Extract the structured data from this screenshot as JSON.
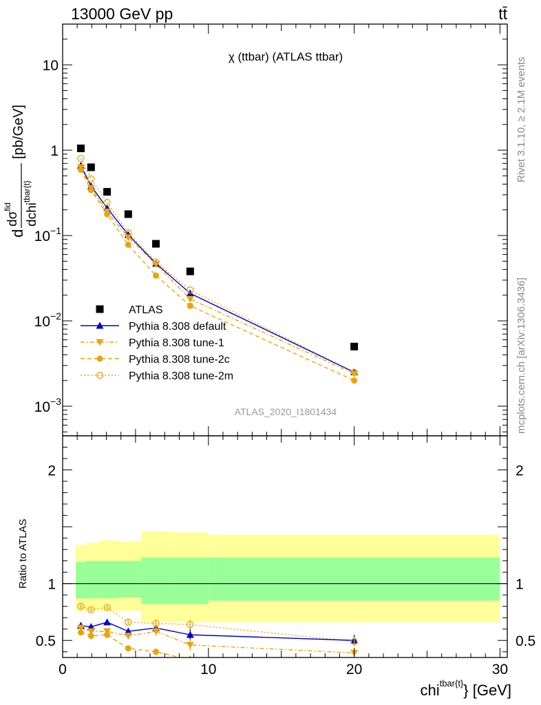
{
  "header": {
    "left": "13000 GeV pp",
    "right": "tt̄"
  },
  "side_labels": {
    "rivet": "Rivet 3.1.10, ≥ 2.1M events",
    "mcplots": "mcplots.cern.ch [arXiv:1306.3436]"
  },
  "chart_data": [
    {
      "type": "line",
      "title": "χ (ttbar) (ATLAS ttbar)",
      "watermark": "ATLAS_2020_I1801434",
      "ylabel": {
        "main": "d",
        "num_sigma": "dσ",
        "num_sup": "fid",
        "den": "dchi",
        "den_sup": "tbar{t}",
        "unit": "[pb/GeV]"
      },
      "yscale": "log",
      "xlim": [
        0,
        30.5
      ],
      "ylim": [
        0.00045,
        30
      ],
      "yticks": [
        {
          "value": 10,
          "label": "10"
        },
        {
          "value": 1,
          "label": "1"
        },
        {
          "value": 0.1,
          "label": "10",
          "exp": "−1"
        },
        {
          "value": 0.01,
          "label": "10",
          "exp": "−2"
        },
        {
          "value": 0.001,
          "label": "10",
          "exp": "−3"
        }
      ],
      "series": [
        {
          "name": "ATLAS",
          "color": "#000000",
          "marker": "square",
          "line": "none",
          "x": [
            1.25,
            1.95,
            3.05,
            4.5,
            6.4,
            8.75,
            20
          ],
          "y": [
            1.05,
            0.63,
            0.325,
            0.178,
            0.08,
            0.038,
            0.005
          ]
        },
        {
          "name": "Pythia 8.308 default",
          "color": "#0000cc",
          "marker": "triangle-up",
          "line": "solid",
          "x": [
            1.25,
            1.95,
            3.05,
            4.5,
            6.4,
            8.75,
            20
          ],
          "y": [
            0.66,
            0.38,
            0.21,
            0.102,
            0.047,
            0.021,
            0.0025
          ]
        },
        {
          "name": "Pythia 8.308 tune-1",
          "color": "#e8a40c",
          "marker": "triangle-down",
          "line": "dashdot",
          "x": [
            1.25,
            1.95,
            3.05,
            4.5,
            6.4,
            8.75,
            20
          ],
          "y": [
            0.63,
            0.36,
            0.19,
            0.095,
            0.046,
            0.018,
            0.0024
          ]
        },
        {
          "name": "Pythia 8.308 tune-2c",
          "color": "#e8a40c",
          "marker": "circle",
          "line": "dashed",
          "x": [
            1.25,
            1.95,
            3.05,
            4.5,
            6.4,
            8.75,
            20
          ],
          "y": [
            0.59,
            0.34,
            0.178,
            0.078,
            0.034,
            0.015,
            0.002
          ]
        },
        {
          "name": "Pythia 8.308 tune-2m",
          "color": "#e8a40c",
          "marker": "open-circle",
          "line": "dotted",
          "x": [
            1.25,
            1.95,
            3.05,
            4.5,
            6.4,
            8.75,
            20
          ],
          "y": [
            0.8,
            0.46,
            0.245,
            0.108,
            0.049,
            0.023,
            0.0025
          ]
        }
      ]
    },
    {
      "type": "line",
      "ylabel": "Ratio to ATLAS",
      "xlabel": {
        "main": "chi",
        "sup": "tbar{t}",
        "tail": "} [GeV]"
      },
      "xlim": [
        0,
        30.5
      ],
      "ylim": [
        0.35,
        2.3
      ],
      "xticks": [
        0,
        10,
        20,
        30
      ],
      "yticks": [
        0.5,
        1,
        2
      ],
      "reference_line": 1,
      "bands": [
        {
          "x0": 0.9,
          "x1": 1.6,
          "yellow": [
            0.76,
            1.34
          ],
          "green": [
            0.87,
            1.19
          ]
        },
        {
          "x0": 1.6,
          "x1": 2.5,
          "yellow": [
            0.76,
            1.36
          ],
          "green": [
            0.87,
            1.2
          ]
        },
        {
          "x0": 2.5,
          "x1": 3.8,
          "yellow": [
            0.76,
            1.38
          ],
          "green": [
            0.87,
            1.2
          ]
        },
        {
          "x0": 3.8,
          "x1": 5.4,
          "yellow": [
            0.76,
            1.37
          ],
          "green": [
            0.88,
            1.2
          ]
        },
        {
          "x0": 5.4,
          "x1": 7.5,
          "yellow": [
            0.66,
            1.46
          ],
          "green": [
            0.82,
            1.23
          ]
        },
        {
          "x0": 7.5,
          "x1": 10,
          "yellow": [
            0.66,
            1.45
          ],
          "green": [
            0.82,
            1.23
          ]
        },
        {
          "x0": 10,
          "x1": 30,
          "yellow": [
            0.66,
            1.43
          ],
          "green": [
            0.85,
            1.23
          ]
        }
      ],
      "series": [
        {
          "name": "Pythia 8.308 default",
          "color": "#0000cc",
          "marker": "triangle-up",
          "line": "solid",
          "x": [
            1.25,
            1.95,
            3.05,
            4.5,
            6.4,
            8.75,
            20
          ],
          "y": [
            0.63,
            0.62,
            0.66,
            0.58,
            0.61,
            0.55,
            0.5
          ],
          "err": [
            0.03,
            0.02,
            0.02,
            0.03,
            0.03,
            0.05,
            0.05
          ]
        },
        {
          "name": "Pythia 8.308 tune-1",
          "color": "#e8a40c",
          "marker": "triangle-down",
          "line": "dashdot",
          "x": [
            1.25,
            1.95,
            3.05,
            4.5,
            6.4,
            8.75,
            20
          ],
          "y": [
            0.61,
            0.58,
            0.58,
            0.54,
            0.58,
            0.46,
            0.39
          ],
          "err": [
            0.03,
            0.02,
            0.02,
            0.03,
            0.04,
            0.05,
            0.03
          ]
        },
        {
          "name": "Pythia 8.308 tune-2c",
          "color": "#e8a40c",
          "marker": "circle",
          "line": "dashed",
          "x": [
            1.25,
            1.95,
            3.05,
            4.5,
            6.4,
            8.75
          ],
          "y": [
            0.57,
            0.54,
            0.55,
            0.43,
            0.4,
            0.33
          ],
          "err": [
            0.02,
            0.02,
            0.03,
            0.02,
            0.03,
            0.04
          ]
        },
        {
          "name": "Pythia 8.308 tune-2m",
          "color": "#e8a40c",
          "marker": "open-circle",
          "line": "dotted",
          "x": [
            1.25,
            1.95,
            3.05,
            4.5,
            6.4,
            8.75,
            20
          ],
          "y": [
            0.8,
            0.77,
            0.79,
            0.66,
            0.65,
            0.64,
            0.49
          ],
          "err": [
            0.02,
            0.02,
            0.02,
            0.02,
            0.03,
            0.04,
            0.04
          ]
        }
      ]
    }
  ]
}
